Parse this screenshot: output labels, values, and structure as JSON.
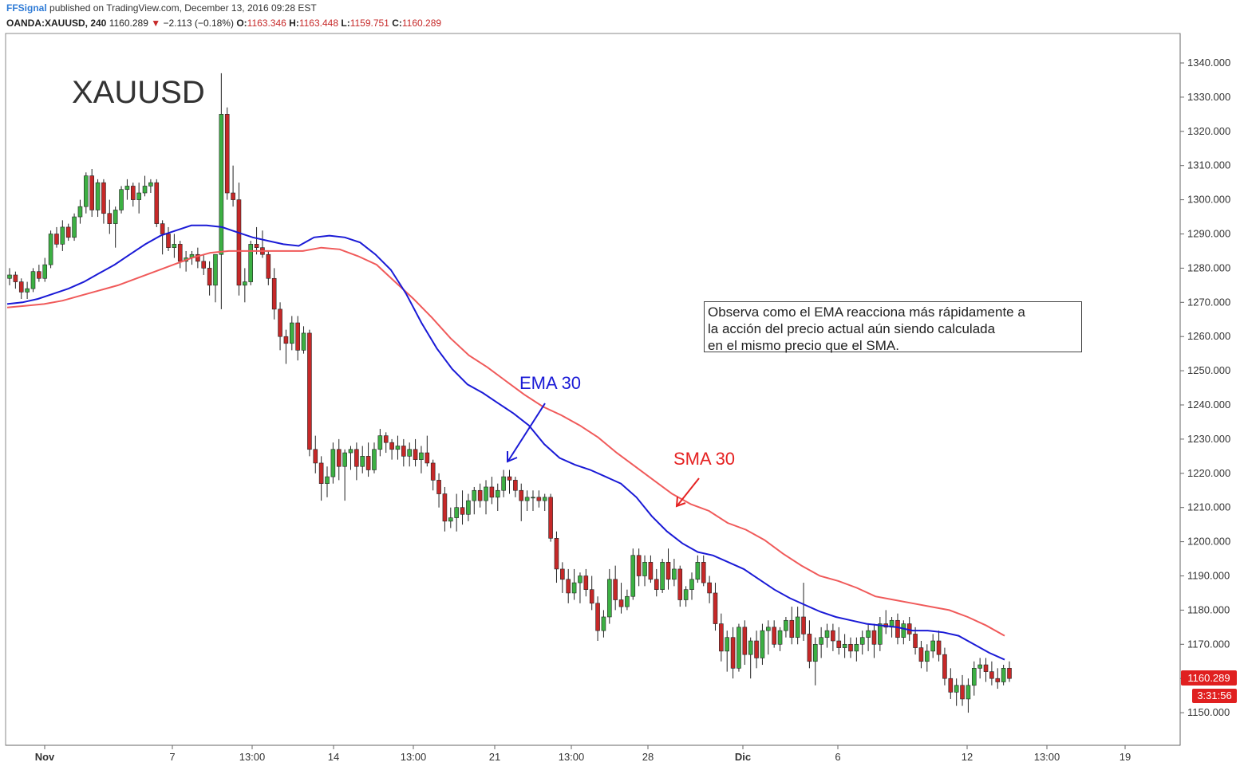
{
  "header": {
    "publisher": "FFSignal",
    "published_text": "published on TradingView.com, December 13, 2016 09:28 EST",
    "symbol": "OANDA:XAUUSD, 240",
    "last": "1160.289",
    "change_arrow": "▼",
    "change": "−2.113 (−0.18%)",
    "o_label": "O:",
    "o_value": "1163.346",
    "h_label": "H:",
    "h_value": "1163.448",
    "l_label": "L:",
    "l_value": "1159.751",
    "c_label": "C:",
    "c_value": "1160.289"
  },
  "watermark": "XAUUSD",
  "annotations": {
    "ema_label": "EMA 30",
    "sma_label": "SMA 30",
    "note_lines": [
      "Observa como el EMA reacciona más rápidamente a",
      "la acción del precio actual aún siendo calculada",
      "en el mismo precio que el SMA."
    ]
  },
  "price_axis": {
    "ticks": [
      "1340.000",
      "1330.000",
      "1320.000",
      "1310.000",
      "1300.000",
      "1290.000",
      "1280.000",
      "1270.000",
      "1260.000",
      "1250.000",
      "1240.000",
      "1230.000",
      "1220.000",
      "1210.000",
      "1200.000",
      "1190.000",
      "1180.000",
      "1170.000",
      "1160.000",
      "1150.000"
    ],
    "last_price_tag": "1160.289",
    "countdown_tag": "3:31:56"
  },
  "time_axis": {
    "ticks": [
      "Nov",
      "7",
      "13:00",
      "14",
      "13:00",
      "21",
      "13:00",
      "28",
      "Dic",
      "6",
      "12",
      "13:00",
      "19"
    ]
  },
  "colors": {
    "up_candle": "#3cb043",
    "down_candle": "#c62828",
    "ema": "#1a1ad6",
    "sma": "#f05a5a",
    "ema_text": "#1a1ad6",
    "sma_text": "#e52222",
    "price_tag_bg": "#e02020",
    "watermark": "#333333"
  },
  "chart_data": {
    "type": "candlestick",
    "symbol": "OANDA:XAUUSD",
    "timeframe": "240",
    "ylim": [
      1142,
      1350
    ],
    "series": [
      {
        "name": "EMA 30",
        "values": [
          1269.5,
          1270,
          1271,
          1272.5,
          1274,
          1276,
          1278.5,
          1281,
          1284,
          1287,
          1289.5,
          1291,
          1292.5,
          1292.5,
          1292,
          1290.5,
          1289,
          1288,
          1287,
          1286.5,
          1289,
          1289.5,
          1289,
          1287.5,
          1284,
          1279.5,
          1272.5,
          1264,
          1256.5,
          1250.5,
          1246,
          1243.5,
          1240.5,
          1237.5,
          1234,
          1228.5,
          1224.5,
          1222.5,
          1221,
          1219,
          1217,
          1213,
          1207.5,
          1203,
          1199.5,
          1197,
          1196,
          1194,
          1192,
          1189,
          1186,
          1183.5,
          1181.5,
          1179.5,
          1178,
          1177,
          1176,
          1175.5,
          1175,
          1174,
          1174,
          1173.5,
          1172.5,
          1170,
          1167.5,
          1165.5
        ]
      },
      {
        "name": "SMA 30",
        "values": [
          1268.5,
          1269,
          1269.5,
          1270.5,
          1272,
          1273.5,
          1275,
          1277,
          1279,
          1281,
          1283,
          1284.5,
          1285,
          1285,
          1285,
          1285,
          1285,
          1286,
          1285.5,
          1283.5,
          1281,
          1276,
          1271,
          1265.5,
          1259.5,
          1254.5,
          1251,
          1247,
          1243,
          1239.5,
          1237,
          1234,
          1230.5,
          1226,
          1222,
          1218,
          1214,
          1211,
          1209,
          1205.5,
          1203.5,
          1200.5,
          1196.5,
          1193,
          1190,
          1188.5,
          1186.5,
          1184,
          1183,
          1182,
          1181,
          1180,
          1178,
          1175.5,
          1172.5
        ]
      }
    ],
    "candles_ohlc": [
      [
        1277,
        1280,
        1275,
        1278
      ],
      [
        1278,
        1279,
        1274,
        1276
      ],
      [
        1276,
        1277,
        1271,
        1273
      ],
      [
        1273,
        1276,
        1271,
        1274
      ],
      [
        1274,
        1280,
        1273,
        1279
      ],
      [
        1279,
        1281,
        1276,
        1277
      ],
      [
        1277,
        1283,
        1276,
        1281
      ],
      [
        1281,
        1291,
        1280,
        1290
      ],
      [
        1290,
        1292,
        1286,
        1287
      ],
      [
        1287,
        1294,
        1285,
        1292
      ],
      [
        1292,
        1293,
        1288,
        1289
      ],
      [
        1289,
        1296,
        1288,
        1295
      ],
      [
        1295,
        1300,
        1293,
        1298
      ],
      [
        1298,
        1308,
        1296,
        1307
      ],
      [
        1307,
        1309,
        1295,
        1297
      ],
      [
        1297,
        1306,
        1295,
        1305
      ],
      [
        1305,
        1306,
        1293,
        1296
      ],
      [
        1296,
        1300,
        1290,
        1293
      ],
      [
        1293,
        1298,
        1286,
        1297
      ],
      [
        1297,
        1304,
        1296,
        1303
      ],
      [
        1303,
        1306,
        1300,
        1304
      ],
      [
        1304,
        1305,
        1298,
        1300
      ],
      [
        1300,
        1305,
        1296,
        1302
      ],
      [
        1302,
        1307,
        1301,
        1304
      ],
      [
        1304,
        1306,
        1302,
        1305
      ],
      [
        1305,
        1306,
        1292,
        1293
      ],
      [
        1293,
        1294,
        1284,
        1290
      ],
      [
        1290,
        1292,
        1285,
        1286
      ],
      [
        1286,
        1290,
        1283,
        1287
      ],
      [
        1287,
        1288,
        1280,
        1282
      ],
      [
        1282,
        1285,
        1279,
        1283
      ],
      [
        1283,
        1285,
        1281,
        1284
      ],
      [
        1284,
        1286,
        1280,
        1282
      ],
      [
        1282,
        1284,
        1278,
        1280
      ],
      [
        1280,
        1282,
        1272,
        1275
      ],
      [
        1275,
        1284,
        1270,
        1284
      ],
      [
        1284,
        1337,
        1268,
        1325
      ],
      [
        1325,
        1327,
        1300,
        1302
      ],
      [
        1302,
        1310,
        1298,
        1300
      ],
      [
        1300,
        1305,
        1272,
        1275
      ],
      [
        1275,
        1280,
        1270,
        1276
      ],
      [
        1276,
        1288,
        1275,
        1287
      ],
      [
        1287,
        1292,
        1284,
        1286
      ],
      [
        1286,
        1291,
        1283,
        1284
      ],
      [
        1284,
        1285,
        1275,
        1277
      ],
      [
        1277,
        1280,
        1265,
        1268
      ],
      [
        1268,
        1270,
        1256,
        1260
      ],
      [
        1260,
        1262,
        1252,
        1258
      ],
      [
        1258,
        1266,
        1256,
        1264
      ],
      [
        1264,
        1266,
        1253,
        1256
      ],
      [
        1256,
        1263,
        1255,
        1261
      ],
      [
        1261,
        1262,
        1225,
        1227
      ],
      [
        1227,
        1231,
        1220,
        1223
      ],
      [
        1223,
        1225,
        1212,
        1217
      ],
      [
        1217,
        1222,
        1213,
        1219
      ],
      [
        1219,
        1229,
        1217,
        1227
      ],
      [
        1227,
        1230,
        1218,
        1222
      ],
      [
        1222,
        1227,
        1212,
        1226
      ],
      [
        1226,
        1228,
        1221,
        1227
      ],
      [
        1227,
        1229,
        1218,
        1222
      ],
      [
        1222,
        1228,
        1220,
        1225
      ],
      [
        1225,
        1229,
        1219,
        1221
      ],
      [
        1221,
        1229,
        1220,
        1227
      ],
      [
        1227,
        1233,
        1225,
        1231
      ],
      [
        1231,
        1232,
        1226,
        1229
      ],
      [
        1229,
        1230,
        1224,
        1227
      ],
      [
        1227,
        1231,
        1224,
        1228
      ],
      [
        1228,
        1230,
        1222,
        1225
      ],
      [
        1225,
        1229,
        1222,
        1227
      ],
      [
        1227,
        1230,
        1222,
        1224
      ],
      [
        1224,
        1228,
        1220,
        1226
      ],
      [
        1226,
        1231,
        1222,
        1223
      ],
      [
        1223,
        1224,
        1215,
        1218
      ],
      [
        1218,
        1220,
        1210,
        1214
      ],
      [
        1214,
        1216,
        1203,
        1206
      ],
      [
        1206,
        1210,
        1204,
        1207
      ],
      [
        1207,
        1214,
        1203,
        1210
      ],
      [
        1210,
        1215,
        1205,
        1208
      ],
      [
        1208,
        1214,
        1206,
        1212
      ],
      [
        1212,
        1216,
        1208,
        1215
      ],
      [
        1215,
        1217,
        1210,
        1212
      ],
      [
        1212,
        1218,
        1208,
        1216
      ],
      [
        1216,
        1219,
        1211,
        1213
      ],
      [
        1213,
        1217,
        1209,
        1215
      ],
      [
        1215,
        1221,
        1213,
        1219
      ],
      [
        1219,
        1221,
        1214,
        1218
      ],
      [
        1218,
        1219,
        1213,
        1215
      ],
      [
        1215,
        1217,
        1206,
        1212
      ],
      [
        1212,
        1215,
        1209,
        1213
      ],
      [
        1213,
        1215,
        1209,
        1213
      ],
      [
        1213,
        1215,
        1210,
        1212
      ],
      [
        1212,
        1214,
        1209,
        1213
      ],
      [
        1213,
        1214,
        1200,
        1201
      ],
      [
        1201,
        1203,
        1188,
        1192
      ],
      [
        1192,
        1194,
        1185,
        1189
      ],
      [
        1189,
        1192,
        1182,
        1185
      ],
      [
        1185,
        1192,
        1183,
        1188
      ],
      [
        1188,
        1191,
        1182,
        1190
      ],
      [
        1190,
        1192,
        1184,
        1186
      ],
      [
        1186,
        1190,
        1180,
        1182
      ],
      [
        1182,
        1184,
        1171,
        1174
      ],
      [
        1174,
        1180,
        1172,
        1178
      ],
      [
        1178,
        1192,
        1176,
        1189
      ],
      [
        1189,
        1193,
        1180,
        1183
      ],
      [
        1183,
        1188,
        1179,
        1181
      ],
      [
        1181,
        1186,
        1180,
        1184
      ],
      [
        1184,
        1198,
        1183,
        1196
      ],
      [
        1196,
        1198,
        1187,
        1190
      ],
      [
        1190,
        1196,
        1187,
        1194
      ],
      [
        1194,
        1196,
        1188,
        1189
      ],
      [
        1189,
        1192,
        1184,
        1186
      ],
      [
        1186,
        1195,
        1185,
        1194
      ],
      [
        1194,
        1198,
        1186,
        1189
      ],
      [
        1189,
        1195,
        1187,
        1192
      ],
      [
        1192,
        1193,
        1181,
        1183
      ],
      [
        1183,
        1187,
        1181,
        1186
      ],
      [
        1186,
        1191,
        1183,
        1189
      ],
      [
        1189,
        1196,
        1188,
        1194
      ],
      [
        1194,
        1196,
        1187,
        1188
      ],
      [
        1188,
        1190,
        1182,
        1185
      ],
      [
        1185,
        1188,
        1174,
        1176
      ],
      [
        1176,
        1179,
        1165,
        1168
      ],
      [
        1168,
        1174,
        1162,
        1172
      ],
      [
        1172,
        1175,
        1160,
        1163
      ],
      [
        1163,
        1176,
        1162,
        1175
      ],
      [
        1175,
        1177,
        1164,
        1167
      ],
      [
        1167,
        1172,
        1160,
        1171
      ],
      [
        1171,
        1174,
        1163,
        1166
      ],
      [
        1166,
        1176,
        1164,
        1174
      ],
      [
        1174,
        1177,
        1167,
        1175
      ],
      [
        1175,
        1177,
        1169,
        1170
      ],
      [
        1170,
        1175,
        1168,
        1174
      ],
      [
        1174,
        1178,
        1172,
        1177
      ],
      [
        1177,
        1181,
        1170,
        1172
      ],
      [
        1172,
        1181,
        1170,
        1178
      ],
      [
        1178,
        1188,
        1171,
        1173
      ],
      [
        1173,
        1177,
        1163,
        1165
      ],
      [
        1165,
        1172,
        1158,
        1170
      ],
      [
        1170,
        1175,
        1166,
        1172
      ],
      [
        1172,
        1176,
        1169,
        1174
      ],
      [
        1174,
        1176,
        1168,
        1171
      ],
      [
        1171,
        1175,
        1167,
        1169
      ],
      [
        1169,
        1173,
        1166,
        1170
      ],
      [
        1170,
        1172,
        1166,
        1168
      ],
      [
        1168,
        1172,
        1165,
        1170
      ],
      [
        1170,
        1174,
        1167,
        1172
      ],
      [
        1172,
        1176,
        1168,
        1174
      ],
      [
        1174,
        1176,
        1166,
        1170
      ],
      [
        1170,
        1178,
        1168,
        1176
      ],
      [
        1176,
        1180,
        1173,
        1175
      ],
      [
        1175,
        1178,
        1172,
        1177
      ],
      [
        1177,
        1179,
        1170,
        1172
      ],
      [
        1172,
        1177,
        1170,
        1176
      ],
      [
        1176,
        1178,
        1171,
        1173
      ],
      [
        1173,
        1175,
        1167,
        1169
      ],
      [
        1169,
        1171,
        1163,
        1165
      ],
      [
        1165,
        1170,
        1162,
        1168
      ],
      [
        1168,
        1173,
        1166,
        1171
      ],
      [
        1171,
        1174,
        1165,
        1167
      ],
      [
        1167,
        1169,
        1158,
        1160
      ],
      [
        1160,
        1163,
        1154,
        1156
      ],
      [
        1156,
        1160,
        1152,
        1158
      ],
      [
        1158,
        1161,
        1152,
        1154
      ],
      [
        1154,
        1160,
        1150,
        1158
      ],
      [
        1158,
        1165,
        1155,
        1163
      ],
      [
        1163,
        1166,
        1160,
        1164
      ],
      [
        1164,
        1166,
        1159,
        1162
      ],
      [
        1162,
        1165,
        1158,
        1160
      ],
      [
        1160,
        1163,
        1157,
        1159
      ],
      [
        1159,
        1164,
        1158,
        1163
      ],
      [
        1163,
        1165,
        1159,
        1160
      ]
    ]
  }
}
